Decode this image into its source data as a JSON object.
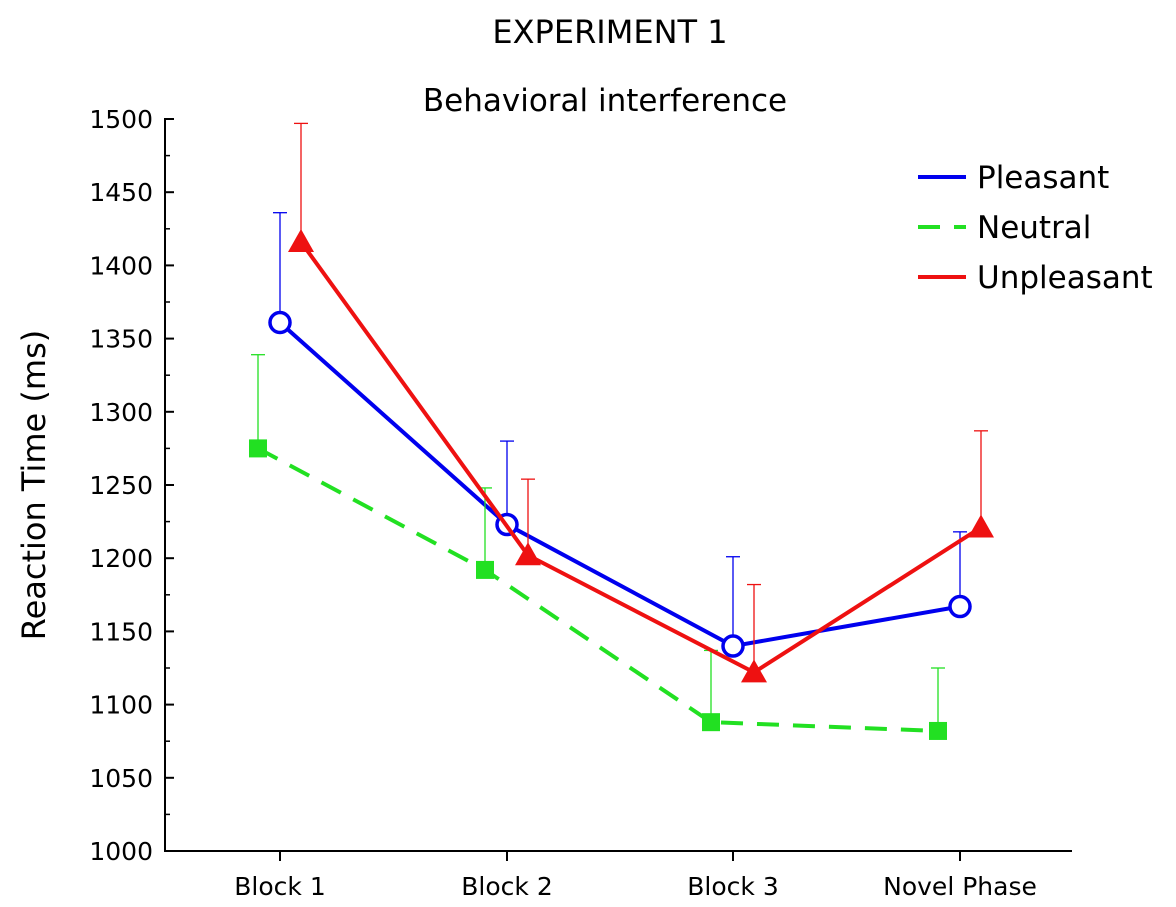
{
  "chart_data": {
    "type": "line",
    "title": "EXPERIMENT 1",
    "subtitle": "Behavioral interference",
    "xlabel": "",
    "ylabel": "Reaction Time (ms)",
    "ylim": [
      1000,
      1500
    ],
    "yticks": [
      1000,
      1050,
      1100,
      1150,
      1200,
      1250,
      1300,
      1350,
      1400,
      1450,
      1500
    ],
    "categories": [
      "Block 1",
      "Block 2",
      "Block 3",
      "Novel Phase"
    ],
    "legend_position": "top-right",
    "grid": false,
    "series": [
      {
        "name": "Pleasant",
        "color": "#0000ee",
        "marker": "open-circle",
        "line_style": "solid",
        "values": [
          1361,
          1223,
          1140,
          1167
        ],
        "error_upper": [
          1436,
          1280,
          1201,
          1218
        ]
      },
      {
        "name": "Neutral",
        "color": "#22e022",
        "marker": "filled-square",
        "line_style": "dashed",
        "values": [
          1275,
          1192,
          1088,
          1082
        ],
        "error_upper": [
          1339,
          1248,
          1137,
          1125
        ]
      },
      {
        "name": "Unpleasant",
        "color": "#ee1111",
        "marker": "filled-triangle",
        "line_style": "solid",
        "values": [
          1416,
          1202,
          1122,
          1221
        ],
        "error_upper": [
          1497,
          1254,
          1182,
          1287
        ]
      }
    ]
  }
}
